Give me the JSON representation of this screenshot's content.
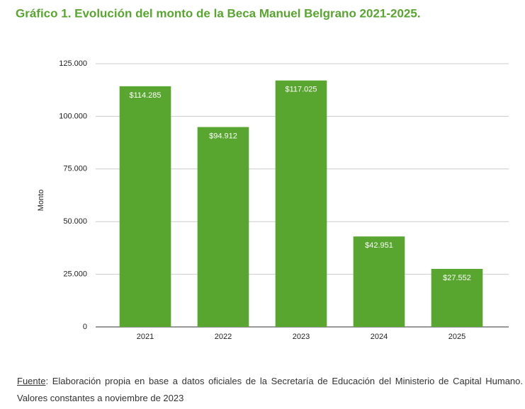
{
  "chart_data": {
    "type": "bar",
    "title": "Gráfico 1. Evolución del monto de la Beca Manuel Belgrano 2021-2025.",
    "y_label": "Monto",
    "categories": [
      "2021",
      "2022",
      "2023",
      "2024",
      "2025"
    ],
    "values": [
      114285,
      94912,
      117025,
      42951,
      27552
    ],
    "value_labels": [
      "$114.285",
      "$94.912",
      "$117.025",
      "$42.951",
      "$27.552"
    ],
    "color": "#58a52f",
    "ylim": [
      0,
      125000
    ],
    "yticks": [
      0,
      {
        "value": 25000,
        "label": "25.000"
      },
      {
        "value": 50000,
        "label": "50.000"
      },
      {
        "value": 75000,
        "label": "75.000"
      },
      {
        "value": 100000,
        "label": "100.000"
      },
      {
        "value": 125000,
        "label": "125.000"
      }
    ],
    "grid": true
  },
  "footer": {
    "source_label": "Fuente",
    "text": ": Elaboración propia en base a datos oficiales de la Secretaría de Educación del Ministerio de Capital Humano. Valores constantes a noviembre de 2023"
  }
}
